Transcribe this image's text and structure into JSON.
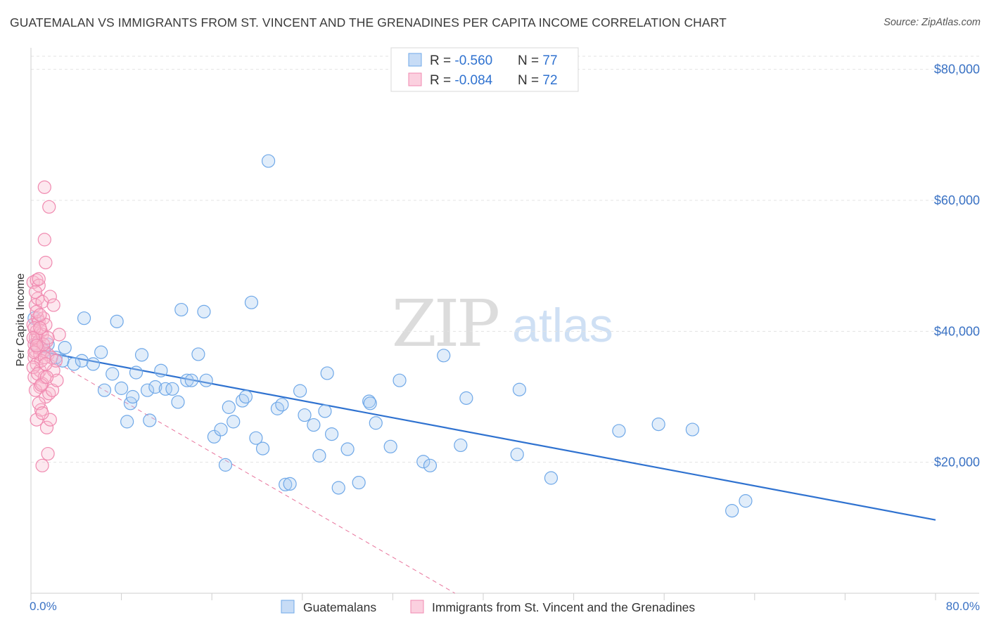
{
  "title": "GUATEMALAN VS IMMIGRANTS FROM ST. VINCENT AND THE GRENADINES PER CAPITA INCOME CORRELATION CHART",
  "source": "Source: ZipAtlas.com",
  "watermark": {
    "zip": "ZIP",
    "atlas": "atlas"
  },
  "chart_data": {
    "type": "scatter",
    "ylabel": "Per Capita Income",
    "xlim": [
      0,
      80
    ],
    "ylim": [
      0,
      82000
    ],
    "x_tick_labels": {
      "left": "0.0%",
      "right": "80.0%"
    },
    "y_ticks": [
      {
        "value": 20000,
        "label": "$20,000"
      },
      {
        "value": 40000,
        "label": "$40,000"
      },
      {
        "value": 60000,
        "label": "$60,000"
      },
      {
        "value": 80000,
        "label": "$80,000"
      }
    ],
    "grid": true,
    "legend_position": "top-center",
    "stats": [
      {
        "r_label": "R = ",
        "r_value": "-0.560",
        "n_label": "N = ",
        "n_value": "77",
        "color": "#6fa8e8"
      },
      {
        "r_label": "R = ",
        "r_value": "-0.084",
        "n_label": "N = ",
        "n_value": "72",
        "color": "#f08ab0"
      }
    ],
    "series": [
      {
        "name": "Guatemalans",
        "color": "#6fa8e8",
        "trend": {
          "x": [
            0,
            80
          ],
          "y": [
            37200,
            11200
          ],
          "color": "#2f72d0",
          "style": "solid"
        },
        "points": [
          [
            0.3,
            42000
          ],
          [
            0.5,
            38000
          ],
          [
            1.2,
            37000
          ],
          [
            1.5,
            38000
          ],
          [
            2.2,
            36000
          ],
          [
            2.8,
            35500
          ],
          [
            3.0,
            37500
          ],
          [
            3.8,
            35000
          ],
          [
            4.5,
            35500
          ],
          [
            4.7,
            42000
          ],
          [
            5.5,
            35000
          ],
          [
            6.2,
            36800
          ],
          [
            6.5,
            31000
          ],
          [
            7.2,
            33500
          ],
          [
            7.6,
            41500
          ],
          [
            8.0,
            31300
          ],
          [
            8.5,
            26200
          ],
          [
            8.8,
            29000
          ],
          [
            9.3,
            33700
          ],
          [
            9.8,
            36400
          ],
          [
            10.3,
            31000
          ],
          [
            10.5,
            26400
          ],
          [
            11.0,
            31500
          ],
          [
            11.5,
            34000
          ],
          [
            11.9,
            31200
          ],
          [
            12.5,
            31200
          ],
          [
            13.0,
            29200
          ],
          [
            13.3,
            43300
          ],
          [
            13.8,
            32500
          ],
          [
            14.2,
            32500
          ],
          [
            14.8,
            36500
          ],
          [
            15.3,
            43000
          ],
          [
            15.5,
            32500
          ],
          [
            16.2,
            23900
          ],
          [
            16.8,
            25000
          ],
          [
            17.2,
            19600
          ],
          [
            17.5,
            28400
          ],
          [
            17.9,
            26200
          ],
          [
            18.7,
            29400
          ],
          [
            19.0,
            30000
          ],
          [
            19.5,
            44400
          ],
          [
            19.9,
            23700
          ],
          [
            20.5,
            22100
          ],
          [
            21.0,
            66000
          ],
          [
            21.8,
            28200
          ],
          [
            22.2,
            28800
          ],
          [
            22.5,
            16600
          ],
          [
            22.9,
            16700
          ],
          [
            23.8,
            30900
          ],
          [
            24.2,
            27200
          ],
          [
            25.0,
            25700
          ],
          [
            25.5,
            21000
          ],
          [
            26.0,
            27800
          ],
          [
            26.2,
            33600
          ],
          [
            26.6,
            24300
          ],
          [
            27.2,
            16100
          ],
          [
            28.0,
            22000
          ],
          [
            29.0,
            16900
          ],
          [
            29.9,
            29300
          ],
          [
            30.5,
            26000
          ],
          [
            31.8,
            22400
          ],
          [
            32.6,
            32500
          ],
          [
            34.7,
            20100
          ],
          [
            35.3,
            19500
          ],
          [
            36.5,
            36300
          ],
          [
            38.0,
            22600
          ],
          [
            38.5,
            29800
          ],
          [
            43.0,
            21200
          ],
          [
            43.2,
            31100
          ],
          [
            46.0,
            17600
          ],
          [
            52.0,
            24800
          ],
          [
            55.5,
            25800
          ],
          [
            58.5,
            25000
          ],
          [
            62.0,
            12600
          ],
          [
            63.2,
            14100
          ],
          [
            30.0,
            29000
          ],
          [
            9.0,
            30000
          ]
        ]
      },
      {
        "name": "Immigrants from St. Vincent and the Grenadines",
        "color": "#f08ab0",
        "trend": {
          "x": [
            0,
            37.5
          ],
          "y": [
            37500,
            0
          ],
          "color": "#e8749c",
          "style": "dashed"
        },
        "points": [
          [
            0.2,
            47500
          ],
          [
            0.2,
            41000
          ],
          [
            0.3,
            38000
          ],
          [
            0.3,
            36000
          ],
          [
            0.3,
            33000
          ],
          [
            0.4,
            44000
          ],
          [
            0.4,
            39000
          ],
          [
            0.4,
            37000
          ],
          [
            0.5,
            47800
          ],
          [
            0.5,
            40000
          ],
          [
            0.5,
            35000
          ],
          [
            0.5,
            26500
          ],
          [
            0.6,
            45000
          ],
          [
            0.6,
            42000
          ],
          [
            0.6,
            39000
          ],
          [
            0.7,
            47000
          ],
          [
            0.7,
            41500
          ],
          [
            0.7,
            38500
          ],
          [
            0.8,
            36500
          ],
          [
            0.8,
            34000
          ],
          [
            0.8,
            31500
          ],
          [
            0.9,
            40000
          ],
          [
            0.9,
            28000
          ],
          [
            1.0,
            44500
          ],
          [
            1.0,
            39500
          ],
          [
            1.0,
            19500
          ],
          [
            1.1,
            42000
          ],
          [
            1.1,
            37000
          ],
          [
            1.2,
            62000
          ],
          [
            1.2,
            54000
          ],
          [
            1.2,
            33000
          ],
          [
            1.3,
            50500
          ],
          [
            1.3,
            41000
          ],
          [
            1.3,
            30000
          ],
          [
            1.4,
            38500
          ],
          [
            1.4,
            25300
          ],
          [
            1.5,
            36500
          ],
          [
            1.5,
            21300
          ],
          [
            1.6,
            59000
          ],
          [
            1.6,
            30500
          ],
          [
            1.7,
            45300
          ],
          [
            1.7,
            26500
          ],
          [
            1.8,
            36000
          ],
          [
            1.9,
            31000
          ],
          [
            2.0,
            44000
          ],
          [
            2.0,
            34000
          ],
          [
            2.2,
            35500
          ],
          [
            2.3,
            32500
          ],
          [
            2.5,
            39500
          ],
          [
            0.3,
            40500
          ],
          [
            0.6,
            37500
          ],
          [
            0.9,
            35500
          ],
          [
            0.4,
            31000
          ],
          [
            0.7,
            29000
          ],
          [
            1.0,
            32000
          ],
          [
            0.2,
            34500
          ],
          [
            0.5,
            43000
          ],
          [
            0.8,
            40500
          ],
          [
            1.1,
            38000
          ],
          [
            0.3,
            36800
          ],
          [
            0.6,
            33500
          ],
          [
            0.9,
            31800
          ],
          [
            1.2,
            36000
          ],
          [
            1.5,
            39000
          ],
          [
            0.4,
            46000
          ],
          [
            0.7,
            48000
          ],
          [
            1.0,
            27500
          ],
          [
            1.3,
            35000
          ],
          [
            0.2,
            39000
          ],
          [
            0.5,
            37800
          ],
          [
            0.8,
            42500
          ],
          [
            1.4,
            33000
          ]
        ]
      }
    ]
  }
}
